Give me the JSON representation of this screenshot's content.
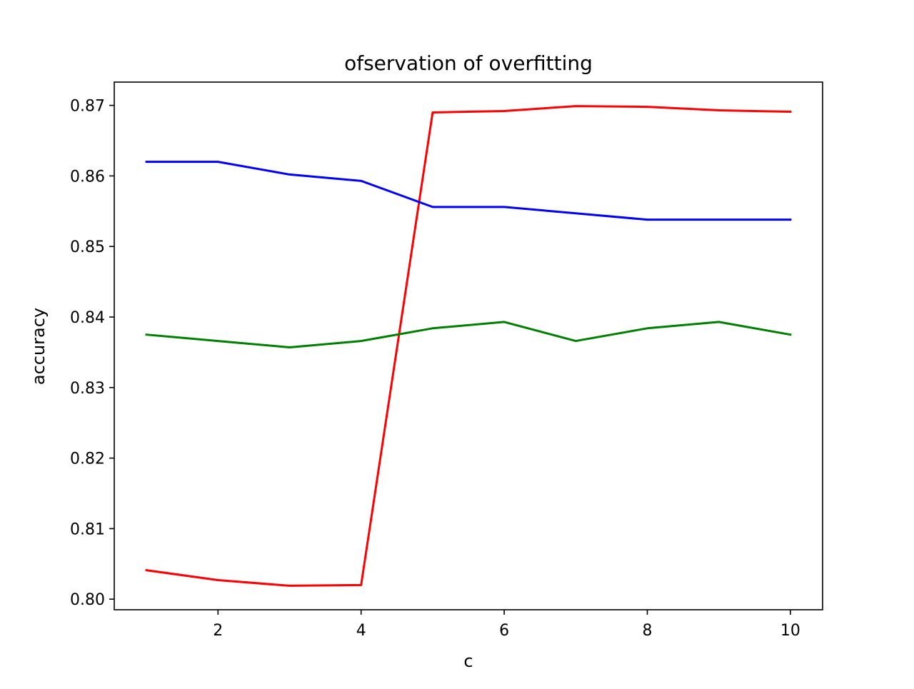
{
  "chart_data": {
    "type": "line",
    "title": "ofservation of overfitting",
    "xlabel": "c",
    "ylabel": "accuracy",
    "xlim": [
      0.55,
      10.45
    ],
    "ylim": [
      0.7985,
      0.8733
    ],
    "xticks": [
      2,
      4,
      6,
      8,
      10
    ],
    "xtick_labels": [
      "2",
      "4",
      "6",
      "8",
      "10"
    ],
    "yticks": [
      0.8,
      0.81,
      0.82,
      0.83,
      0.84,
      0.85,
      0.86,
      0.87
    ],
    "ytick_labels": [
      "0.80",
      "0.81",
      "0.82",
      "0.83",
      "0.84",
      "0.85",
      "0.86",
      "0.87"
    ],
    "grid": false,
    "x": [
      1,
      2,
      3,
      4,
      5,
      6,
      7,
      8,
      9,
      10
    ],
    "series": [
      {
        "color": "#ff0000",
        "values": [
          0.8041,
          0.8027,
          0.8019,
          0.802,
          0.869,
          0.8692,
          0.8699,
          0.8698,
          0.8693,
          0.8691
        ]
      },
      {
        "color": "#0000ff",
        "values": [
          0.862,
          0.862,
          0.8602,
          0.8593,
          0.8556,
          0.8556,
          0.8547,
          0.8538,
          0.8538,
          0.8538
        ]
      },
      {
        "color": "#008000",
        "values": [
          0.8375,
          0.8366,
          0.8357,
          0.8366,
          0.8384,
          0.8393,
          0.8366,
          0.8384,
          0.8393,
          0.8375
        ]
      }
    ]
  }
}
